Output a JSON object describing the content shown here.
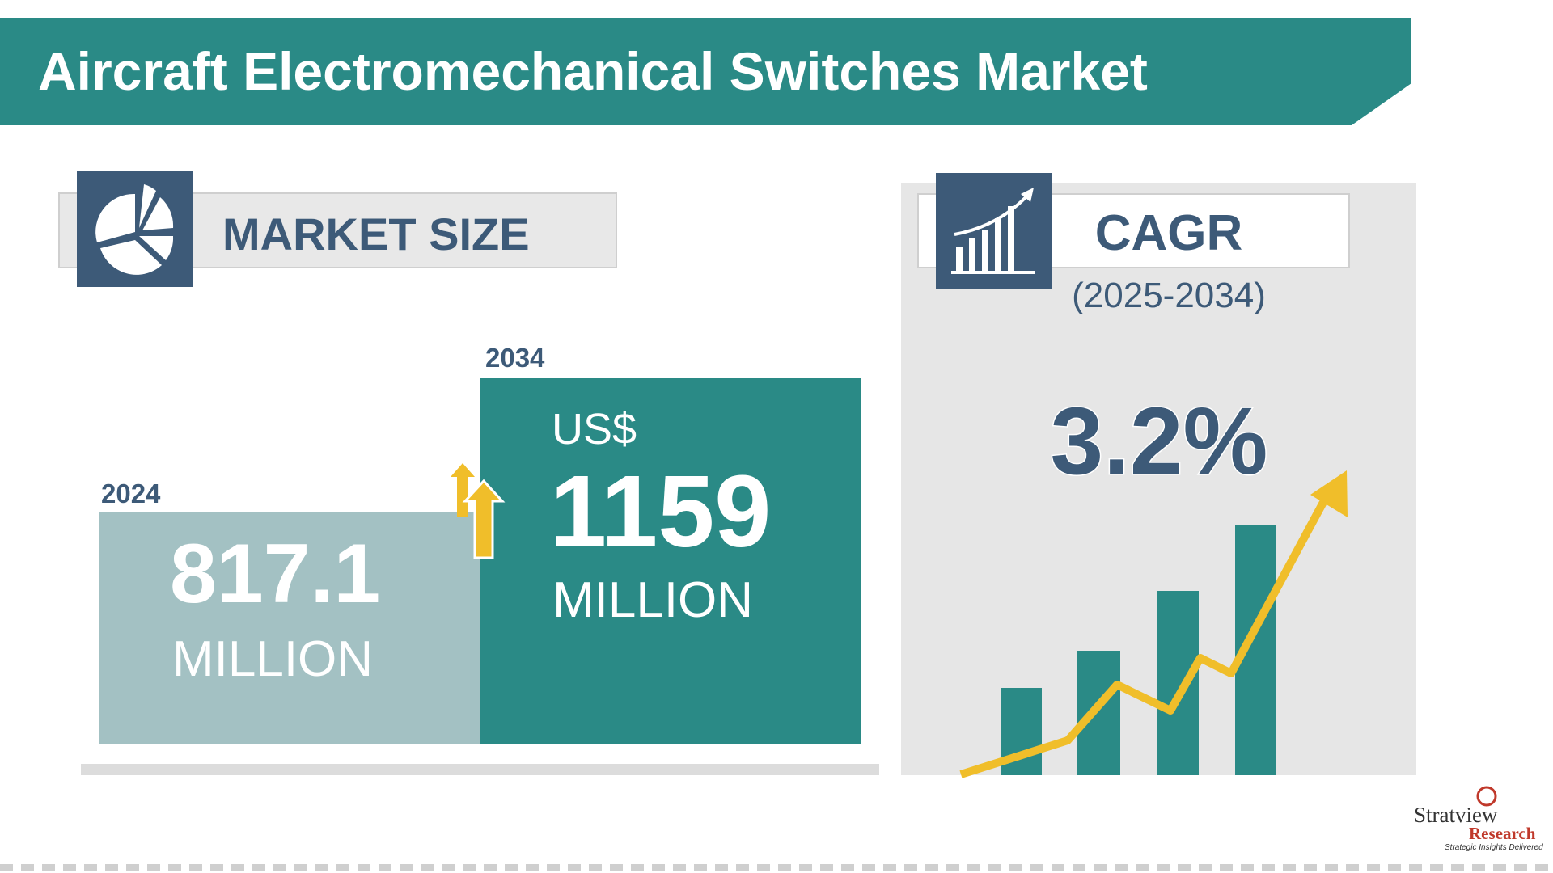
{
  "header": {
    "title": "Aircraft Electromechanical Switches Market"
  },
  "market_size": {
    "label": "MARKET SIZE",
    "start": {
      "year": "2024",
      "value": "817.1",
      "unit": "MILLION"
    },
    "end": {
      "year": "2034",
      "currency": "US$",
      "value": "1159",
      "unit": "MILLION"
    }
  },
  "cagr": {
    "label": "CAGR",
    "period": "(2025-2034)",
    "value": "3.2%"
  },
  "logo": {
    "name": "Stratview",
    "sub": "Research",
    "tagline": "Strategic Insights Delivered"
  }
}
